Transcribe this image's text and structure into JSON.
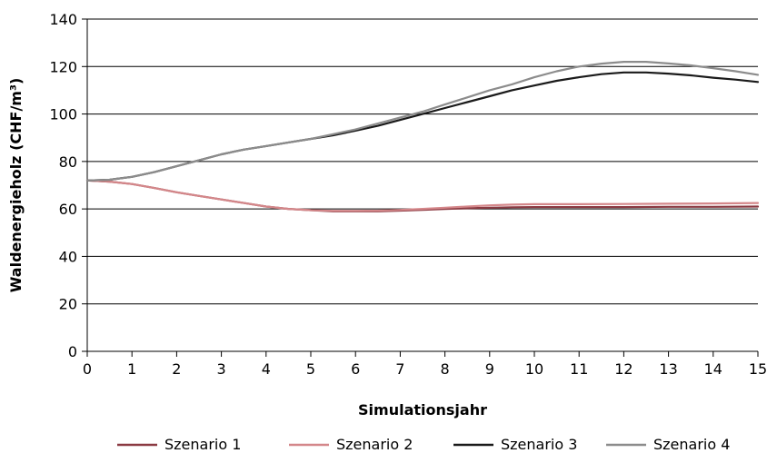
{
  "chart_data": {
    "type": "line",
    "xlabel": "Simulationsjahr",
    "ylabel": "Waldenergieholz (CHF/m³)",
    "xlim": [
      0,
      15
    ],
    "ylim": [
      0,
      140
    ],
    "xticks": [
      0,
      1,
      2,
      3,
      4,
      5,
      6,
      7,
      8,
      9,
      10,
      11,
      12,
      13,
      14,
      15
    ],
    "yticks": [
      0,
      20,
      40,
      60,
      80,
      100,
      120,
      140
    ],
    "grid": "horizontal",
    "legend_position": "bottom",
    "series": [
      {
        "name": "Szenario 1",
        "color": "#8b3a42",
        "x": [
          0,
          0.5,
          1,
          1.5,
          2,
          2.5,
          3,
          3.5,
          4,
          4.5,
          5,
          5.5,
          6,
          6.5,
          7,
          7.5,
          8,
          8.5,
          9,
          9.5,
          10,
          11,
          12,
          13,
          14,
          15
        ],
        "y": [
          72,
          71.5,
          70.5,
          68.8,
          67,
          65.5,
          64,
          62.5,
          61,
          60,
          59.5,
          59,
          59,
          59,
          59.3,
          59.6,
          60,
          60.3,
          60.5,
          60.7,
          60.8,
          60.8,
          60.8,
          60.9,
          60.9,
          61
        ]
      },
      {
        "name": "Szenario 2",
        "color": "#d4878a",
        "x": [
          0,
          0.5,
          1,
          1.5,
          2,
          2.5,
          3,
          3.5,
          4,
          4.5,
          5,
          5.5,
          6,
          6.5,
          7,
          7.5,
          8,
          8.5,
          9,
          9.5,
          10,
          11,
          12,
          13,
          14,
          15
        ],
        "y": [
          72,
          71.5,
          70.5,
          68.8,
          67,
          65.5,
          64,
          62.5,
          61,
          60,
          59.5,
          59.2,
          59.2,
          59.3,
          59.6,
          60,
          60.5,
          61,
          61.5,
          61.8,
          62,
          62,
          62.1,
          62.2,
          62.3,
          62.5
        ]
      },
      {
        "name": "Szenario 3",
        "color": "#1a1a1a",
        "x": [
          0,
          0.5,
          1,
          1.5,
          2,
          2.5,
          3,
          3.5,
          4,
          4.5,
          5,
          5.5,
          6,
          6.5,
          7,
          7.5,
          8,
          8.5,
          9,
          9.5,
          10,
          10.5,
          11,
          11.5,
          12,
          12.5,
          13,
          13.5,
          14,
          14.5,
          15
        ],
        "y": [
          72,
          72.3,
          73.5,
          75.5,
          78,
          80.5,
          83,
          85,
          86.5,
          88,
          89.5,
          91,
          93,
          95,
          97.5,
          100,
          102.5,
          105,
          107.5,
          110,
          112,
          114,
          115.5,
          116.8,
          117.5,
          117.5,
          117,
          116.3,
          115.3,
          114.5,
          113.5
        ]
      },
      {
        "name": "Szenario 4",
        "color": "#8c8c8c",
        "x": [
          0,
          0.5,
          1,
          1.5,
          2,
          2.5,
          3,
          3.5,
          4,
          4.5,
          5,
          5.5,
          6,
          6.5,
          7,
          7.5,
          8,
          8.5,
          9,
          9.5,
          10,
          10.5,
          11,
          11.5,
          12,
          12.5,
          13,
          13.5,
          14,
          14.5,
          15
        ],
        "y": [
          72,
          72.3,
          73.5,
          75.5,
          78,
          80.5,
          83,
          85,
          86.5,
          88,
          89.5,
          91.5,
          93.5,
          96,
          98.5,
          101,
          104,
          107,
          110,
          112.5,
          115.5,
          118,
          120,
          121.2,
          122,
          122,
          121.3,
          120.5,
          119.3,
          118,
          116.5
        ]
      }
    ]
  }
}
